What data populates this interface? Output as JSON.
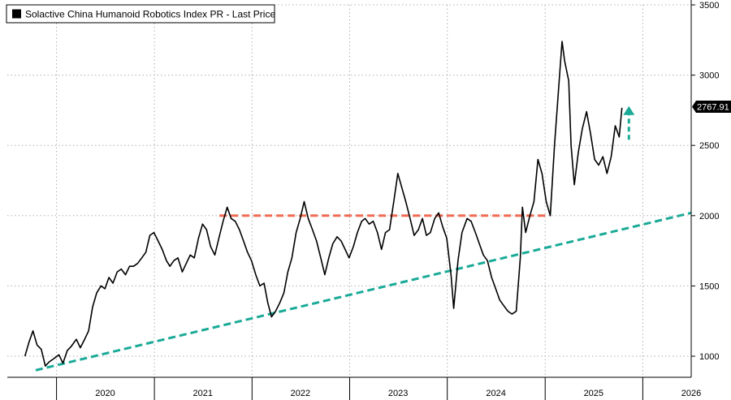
{
  "chart_data": {
    "type": "line",
    "legend": {
      "label": "Solactive China Humanoid Robotics Index PR - Last Price",
      "color": "#000000",
      "placement": "top-left"
    },
    "last_price": {
      "label": "2767.91",
      "value": 2767.91
    },
    "y_axis": {
      "min": 850,
      "max": 3500,
      "ticks": [
        {
          "value": 1000,
          "label": "1000"
        },
        {
          "value": 1500,
          "label": "1500"
        },
        {
          "value": 2000,
          "label": "2000"
        },
        {
          "value": 2500,
          "label": "2500"
        },
        {
          "value": 3000,
          "label": "3000"
        },
        {
          "value": 3500,
          "label": "3500"
        }
      ],
      "position": "right"
    },
    "x_axis": {
      "min": "2019-07-01",
      "max": "2026-07-01",
      "year_labels": [
        {
          "label": "2020",
          "date": "2020-07-01"
        },
        {
          "label": "2021",
          "date": "2021-07-01"
        },
        {
          "label": "2022",
          "date": "2022-07-01"
        },
        {
          "label": "2023",
          "date": "2023-07-01"
        },
        {
          "label": "2024",
          "date": "2024-07-01"
        },
        {
          "label": "2025",
          "date": "2025-07-01"
        },
        {
          "label": "2026",
          "date": "2026-07-01"
        }
      ],
      "year_boundaries": [
        "2020-01-01",
        "2021-01-01",
        "2022-01-01",
        "2023-01-01",
        "2024-01-01",
        "2025-01-01",
        "2026-01-01"
      ]
    },
    "grid": true,
    "series": [
      {
        "color": "#000000",
        "points": [
          [
            "2019-09-05",
            1000
          ],
          [
            "2019-09-20",
            1100
          ],
          [
            "2019-10-05",
            1180
          ],
          [
            "2019-10-20",
            1080
          ],
          [
            "2019-11-05",
            1050
          ],
          [
            "2019-11-20",
            930
          ],
          [
            "2019-12-05",
            960
          ],
          [
            "2019-12-20",
            980
          ],
          [
            "2020-01-10",
            1010
          ],
          [
            "2020-01-25",
            950
          ],
          [
            "2020-02-10",
            1040
          ],
          [
            "2020-02-25",
            1070
          ],
          [
            "2020-03-15",
            1120
          ],
          [
            "2020-03-30",
            1060
          ],
          [
            "2020-04-15",
            1120
          ],
          [
            "2020-04-30",
            1180
          ],
          [
            "2020-05-15",
            1350
          ],
          [
            "2020-05-30",
            1450
          ],
          [
            "2020-06-15",
            1500
          ],
          [
            "2020-06-30",
            1480
          ],
          [
            "2020-07-15",
            1560
          ],
          [
            "2020-07-30",
            1520
          ],
          [
            "2020-08-15",
            1600
          ],
          [
            "2020-08-30",
            1620
          ],
          [
            "2020-09-15",
            1580
          ],
          [
            "2020-09-30",
            1640
          ],
          [
            "2020-10-15",
            1640
          ],
          [
            "2020-10-30",
            1660
          ],
          [
            "2020-11-15",
            1700
          ],
          [
            "2020-11-30",
            1740
          ],
          [
            "2020-12-15",
            1860
          ],
          [
            "2020-12-30",
            1880
          ],
          [
            "2021-01-15",
            1820
          ],
          [
            "2021-01-30",
            1760
          ],
          [
            "2021-02-15",
            1680
          ],
          [
            "2021-02-28",
            1640
          ],
          [
            "2021-03-15",
            1680
          ],
          [
            "2021-03-30",
            1700
          ],
          [
            "2021-04-15",
            1600
          ],
          [
            "2021-04-30",
            1660
          ],
          [
            "2021-05-15",
            1720
          ],
          [
            "2021-05-30",
            1700
          ],
          [
            "2021-06-15",
            1840
          ],
          [
            "2021-06-30",
            1940
          ],
          [
            "2021-07-15",
            1900
          ],
          [
            "2021-07-30",
            1780
          ],
          [
            "2021-08-15",
            1720
          ],
          [
            "2021-08-30",
            1840
          ],
          [
            "2021-09-15",
            1960
          ],
          [
            "2021-09-30",
            2060
          ],
          [
            "2021-10-15",
            1980
          ],
          [
            "2021-10-30",
            1960
          ],
          [
            "2021-11-15",
            1900
          ],
          [
            "2021-11-30",
            1820
          ],
          [
            "2021-12-15",
            1740
          ],
          [
            "2021-12-30",
            1680
          ],
          [
            "2022-01-15",
            1580
          ],
          [
            "2022-01-30",
            1500
          ],
          [
            "2022-02-15",
            1520
          ],
          [
            "2022-03-01",
            1380
          ],
          [
            "2022-03-15",
            1280
          ],
          [
            "2022-03-30",
            1320
          ],
          [
            "2022-04-15",
            1380
          ],
          [
            "2022-04-30",
            1450
          ],
          [
            "2022-05-15",
            1600
          ],
          [
            "2022-05-30",
            1700
          ],
          [
            "2022-06-15",
            1880
          ],
          [
            "2022-06-30",
            1980
          ],
          [
            "2022-07-15",
            2100
          ],
          [
            "2022-07-30",
            1980
          ],
          [
            "2022-08-15",
            1900
          ],
          [
            "2022-08-30",
            1820
          ],
          [
            "2022-09-15",
            1700
          ],
          [
            "2022-09-30",
            1580
          ],
          [
            "2022-10-15",
            1700
          ],
          [
            "2022-10-30",
            1800
          ],
          [
            "2022-11-15",
            1850
          ],
          [
            "2022-11-30",
            1820
          ],
          [
            "2022-12-15",
            1760
          ],
          [
            "2022-12-30",
            1700
          ],
          [
            "2023-01-15",
            1780
          ],
          [
            "2023-01-30",
            1880
          ],
          [
            "2023-02-15",
            1960
          ],
          [
            "2023-02-28",
            1980
          ],
          [
            "2023-03-15",
            1940
          ],
          [
            "2023-03-30",
            1960
          ],
          [
            "2023-04-15",
            1880
          ],
          [
            "2023-04-30",
            1760
          ],
          [
            "2023-05-15",
            1880
          ],
          [
            "2023-05-30",
            1900
          ],
          [
            "2023-06-15",
            2100
          ],
          [
            "2023-06-30",
            2300
          ],
          [
            "2023-07-15",
            2200
          ],
          [
            "2023-07-30",
            2100
          ],
          [
            "2023-08-15",
            1980
          ],
          [
            "2023-08-30",
            1860
          ],
          [
            "2023-09-15",
            1900
          ],
          [
            "2023-09-30",
            1980
          ],
          [
            "2023-10-15",
            1860
          ],
          [
            "2023-10-30",
            1880
          ],
          [
            "2023-11-15",
            1980
          ],
          [
            "2023-11-30",
            2020
          ],
          [
            "2023-12-15",
            1920
          ],
          [
            "2023-12-30",
            1840
          ],
          [
            "2024-01-15",
            1580
          ],
          [
            "2024-01-25",
            1340
          ],
          [
            "2024-02-10",
            1680
          ],
          [
            "2024-02-25",
            1880
          ],
          [
            "2024-03-15",
            1980
          ],
          [
            "2024-03-30",
            1960
          ],
          [
            "2024-04-15",
            1880
          ],
          [
            "2024-04-30",
            1800
          ],
          [
            "2024-05-15",
            1720
          ],
          [
            "2024-05-30",
            1680
          ],
          [
            "2024-06-15",
            1560
          ],
          [
            "2024-06-30",
            1480
          ],
          [
            "2024-07-15",
            1400
          ],
          [
            "2024-07-30",
            1360
          ],
          [
            "2024-08-15",
            1320
          ],
          [
            "2024-08-30",
            1300
          ],
          [
            "2024-09-15",
            1320
          ],
          [
            "2024-09-30",
            1700
          ],
          [
            "2024-10-08",
            2060
          ],
          [
            "2024-10-20",
            1880
          ],
          [
            "2024-11-05",
            2000
          ],
          [
            "2024-11-20",
            2100
          ],
          [
            "2024-12-05",
            2400
          ],
          [
            "2024-12-20",
            2300
          ],
          [
            "2025-01-05",
            2100
          ],
          [
            "2025-01-20",
            2000
          ],
          [
            "2025-02-05",
            2500
          ],
          [
            "2025-02-20",
            2900
          ],
          [
            "2025-03-05",
            3240
          ],
          [
            "2025-03-15",
            3100
          ],
          [
            "2025-03-30",
            2960
          ],
          [
            "2025-04-08",
            2500
          ],
          [
            "2025-04-20",
            2220
          ],
          [
            "2025-05-05",
            2450
          ],
          [
            "2025-05-20",
            2620
          ],
          [
            "2025-06-05",
            2740
          ],
          [
            "2025-06-20",
            2580
          ],
          [
            "2025-07-05",
            2400
          ],
          [
            "2025-07-20",
            2360
          ],
          [
            "2025-08-05",
            2420
          ],
          [
            "2025-08-20",
            2300
          ],
          [
            "2025-09-05",
            2420
          ],
          [
            "2025-09-20",
            2640
          ],
          [
            "2025-10-05",
            2560
          ],
          [
            "2025-10-15",
            2767.91
          ]
        ]
      }
    ],
    "annotations": [
      {
        "kind": "dashed-line",
        "color": "#f16a52",
        "from": [
          "2021-09-01",
          2000
        ],
        "to": [
          "2025-01-15",
          2000
        ]
      },
      {
        "kind": "dashed-line",
        "color": "#1aaa97",
        "from": [
          "2019-10-15",
          900
        ],
        "to": [
          "2026-07-01",
          2020
        ]
      },
      {
        "kind": "arrow-up",
        "color": "#1aaa97",
        "from": [
          "2025-11-10",
          2540
        ],
        "to": [
          "2025-11-10",
          2780
        ]
      }
    ]
  }
}
